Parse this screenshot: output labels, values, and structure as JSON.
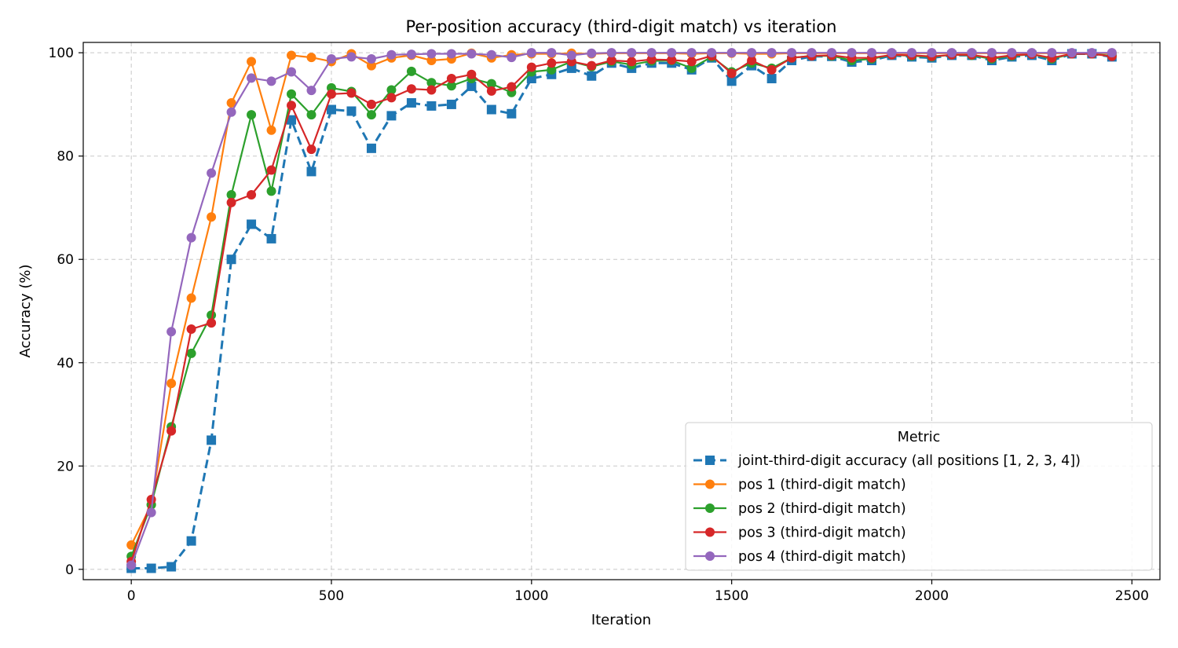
{
  "chart_data": {
    "type": "line",
    "title": "Per-position accuracy (third-digit match) vs iteration",
    "xlabel": "Iteration",
    "ylabel": "Accuracy (%)",
    "xlim": [
      -120,
      2570
    ],
    "ylim": [
      -2,
      102
    ],
    "xticks": [
      0,
      500,
      1000,
      1500,
      2000,
      2500
    ],
    "yticks": [
      0,
      20,
      40,
      60,
      80,
      100
    ],
    "grid": true,
    "legend": {
      "title": "Metric",
      "position": "lower-right"
    },
    "x": [
      0,
      50,
      100,
      150,
      200,
      250,
      300,
      350,
      400,
      450,
      500,
      550,
      600,
      650,
      700,
      750,
      800,
      850,
      900,
      950,
      1000,
      1050,
      1100,
      1150,
      1200,
      1250,
      1300,
      1350,
      1400,
      1450,
      1500,
      1550,
      1600,
      1650,
      1700,
      1750,
      1800,
      1850,
      1900,
      1950,
      2000,
      2050,
      2100,
      2150,
      2200,
      2250,
      2300,
      2350,
      2400,
      2450
    ],
    "series": [
      {
        "name": "joint-third-digit accuracy (all positions [1, 2, 3, 4])",
        "color": "#1f77b4",
        "marker": "square",
        "dashed": true,
        "values": [
          0.2,
          0.2,
          0.5,
          5.5,
          25,
          60,
          66.8,
          64,
          87,
          77,
          89,
          88.7,
          81.5,
          87.8,
          90.3,
          89.7,
          90,
          93.5,
          89,
          88.2,
          95,
          95.8,
          97,
          95.5,
          98,
          97,
          98,
          98,
          96.7,
          99,
          94.5,
          97.5,
          95,
          98.5,
          99.3,
          99.3,
          98.2,
          98.5,
          99.5,
          99.2,
          99,
          99.5,
          99.5,
          98.5,
          99.2,
          99.5,
          98.5,
          99.8,
          99.8,
          99.2
        ]
      },
      {
        "name": "pos 1 (third-digit match)",
        "color": "#ff7f0e",
        "marker": "circle",
        "dashed": false,
        "values": [
          4.7,
          12.5,
          36,
          52.5,
          68.2,
          90.3,
          98.3,
          85,
          99.5,
          99.1,
          98.3,
          99.8,
          97.5,
          99,
          99.5,
          98.5,
          98.8,
          99.9,
          99,
          99.6,
          99.8,
          99.8,
          99.9,
          99.8,
          99.9,
          99.9,
          99.9,
          99.9,
          99.8,
          99.9,
          99.9,
          99.8,
          99.8,
          99.9,
          99.9,
          99.9,
          99.9,
          99.9,
          99.9,
          99.9,
          99.9,
          99.9,
          99.9,
          99.9,
          99.9,
          99.9,
          99.9,
          99.9,
          99.9,
          99.9
        ]
      },
      {
        "name": "pos 2 (third-digit match)",
        "color": "#2ca02c",
        "marker": "circle",
        "dashed": false,
        "values": [
          2.5,
          12.5,
          27.6,
          41.8,
          49.2,
          72.5,
          88,
          73.2,
          92,
          88,
          93.2,
          92.5,
          88,
          92.8,
          96.4,
          94.2,
          93.6,
          95,
          94,
          92.3,
          96.3,
          96.7,
          98.3,
          97.3,
          98.3,
          97.7,
          98.4,
          98.5,
          97,
          99.2,
          96.3,
          98,
          97,
          99,
          99.4,
          99.4,
          98.5,
          98.8,
          99.6,
          99.4,
          99.2,
          99.6,
          99.5,
          98.8,
          99.4,
          99.7,
          98.8,
          99.8,
          99.8,
          99.4
        ]
      },
      {
        "name": "pos 3 (third-digit match)",
        "color": "#d62728",
        "marker": "circle",
        "dashed": false,
        "values": [
          1.5,
          13.5,
          26.8,
          46.5,
          47.7,
          71,
          72.5,
          77.3,
          89.8,
          81.3,
          92,
          92.2,
          90,
          91.3,
          93,
          92.8,
          95,
          95.8,
          92.6,
          93.4,
          97.2,
          98,
          98.3,
          97.5,
          98.5,
          98.3,
          98.7,
          98.6,
          98.3,
          99.4,
          96,
          98.5,
          96.7,
          99,
          99.4,
          99.5,
          99,
          99,
          99.6,
          99.5,
          99.3,
          99.6,
          99.6,
          99,
          99.5,
          99.7,
          99,
          99.8,
          99.8,
          99.3
        ]
      },
      {
        "name": "pos 4 (third-digit match)",
        "color": "#9467bd",
        "marker": "circle",
        "dashed": false,
        "values": [
          0.8,
          11,
          46,
          64.2,
          76.7,
          88.5,
          95.1,
          94.5,
          96.3,
          92.7,
          98.8,
          99.2,
          98.8,
          99.6,
          99.7,
          99.8,
          99.8,
          99.8,
          99.6,
          99.1,
          100,
          100,
          99.5,
          99.9,
          100,
          100,
          100,
          100,
          100,
          100,
          100,
          100,
          100,
          100,
          100,
          100,
          100,
          100,
          100,
          100,
          100,
          100,
          100,
          100,
          100,
          100,
          100,
          100,
          100,
          100
        ]
      }
    ]
  }
}
